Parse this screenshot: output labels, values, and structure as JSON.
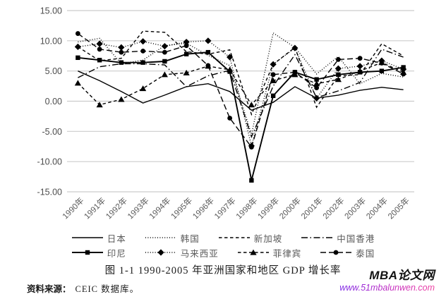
{
  "figure": {
    "caption": "图 1-1 1990-2005 年亚洲国家和地区 GDP 增长率",
    "source_label": "资料来源：",
    "source_text": "CEIC 数据库。",
    "watermark_title": "MBA论文网",
    "watermark_url": "www.51mbalunwen.com"
  },
  "chart_data": {
    "type": "line",
    "title": "图 1-1 1990-2005 年亚洲国家和地区 GDP 增长率",
    "categories": [
      "1990年",
      "1991年",
      "1992年",
      "1993年",
      "1994年",
      "1995年",
      "1996年",
      "1997年",
      "1998年",
      "1999年",
      "2000年",
      "2001年",
      "2002年",
      "2003年",
      "2004年",
      "2005年"
    ],
    "series": [
      {
        "id": "japan",
        "name": "日本",
        "line_style": "solid",
        "marker": "none",
        "values": [
          5.0,
          3.4,
          1.6,
          -0.3,
          1.0,
          2.4,
          2.9,
          1.6,
          -1.5,
          -0.2,
          2.4,
          0.5,
          1.0,
          1.8,
          2.3,
          1.9
        ]
      },
      {
        "id": "korea",
        "name": "韩国",
        "line_style": "dotted",
        "marker": "none",
        "values": [
          9.8,
          10.4,
          6.2,
          6.8,
          9.2,
          9.6,
          7.6,
          5.9,
          -5.5,
          11.3,
          8.9,
          4.5,
          7.4,
          2.9,
          4.6,
          4.0
        ]
      },
      {
        "id": "singapore",
        "name": "新加坡",
        "line_style": "dashed",
        "marker": "none",
        "values": [
          9.0,
          6.7,
          7.1,
          11.6,
          11.4,
          8.2,
          7.8,
          8.5,
          -2.2,
          6.1,
          8.9,
          -1.0,
          4.2,
          4.4,
          9.5,
          7.5
        ]
      },
      {
        "id": "hongkong",
        "name": "中国香港",
        "line_style": "dashdot",
        "marker": "none",
        "values": [
          3.9,
          5.7,
          6.2,
          6.2,
          6.0,
          2.4,
          4.2,
          5.1,
          -5.9,
          2.5,
          7.7,
          0.6,
          1.7,
          3.1,
          8.6,
          7.3
        ]
      },
      {
        "id": "indonesia",
        "name": "印尼",
        "line_style": "solid",
        "marker": "square",
        "values": [
          7.2,
          6.8,
          6.4,
          6.4,
          6.6,
          7.8,
          8.1,
          4.9,
          -13.1,
          0.9,
          4.8,
          3.6,
          4.4,
          4.8,
          5.0,
          5.6
        ]
      },
      {
        "id": "malaysia",
        "name": "马来西亚",
        "line_style": "dotted",
        "marker": "diamond",
        "values": [
          9.0,
          9.5,
          8.9,
          9.9,
          9.1,
          9.8,
          10.0,
          7.3,
          -7.4,
          6.1,
          8.8,
          0.5,
          5.4,
          5.8,
          6.7,
          5.3
        ]
      },
      {
        "id": "philippines",
        "name": "菲律宾",
        "line_style": "dashed",
        "marker": "triangle",
        "values": [
          3.0,
          -0.6,
          0.3,
          2.1,
          4.4,
          4.7,
          5.8,
          5.2,
          -0.6,
          3.4,
          4.4,
          2.9,
          3.6,
          5.0,
          6.4,
          4.8
        ]
      },
      {
        "id": "thailand",
        "name": "泰国",
        "line_style": "longdash",
        "marker": "circle",
        "values": [
          11.2,
          8.6,
          8.1,
          8.3,
          8.1,
          9.2,
          5.9,
          -2.8,
          -7.6,
          4.4,
          4.8,
          2.2,
          6.9,
          7.1,
          6.3,
          4.5
        ]
      }
    ],
    "ylim": [
      -15,
      15
    ],
    "yticks": [
      15,
      10,
      5,
      0,
      -5,
      -10,
      -15
    ],
    "ytick_labels": [
      "15.00",
      "10.00",
      "5.00",
      "0.00",
      "-5.00",
      "-10.00",
      "-15.00"
    ],
    "grid": "horizontal",
    "legend_position": "bottom",
    "legend_rows": [
      [
        "日本",
        "韩国",
        "新加坡",
        "中国香港"
      ],
      [
        "印尼",
        "马来西亚",
        "菲律宾",
        "泰国"
      ]
    ],
    "line_color": "#000000",
    "gridline_color": "#cccccc",
    "ytick_label_color": "#4d4d4d",
    "xtick_label_color": "#595959",
    "legend_text_color": "#595959"
  }
}
